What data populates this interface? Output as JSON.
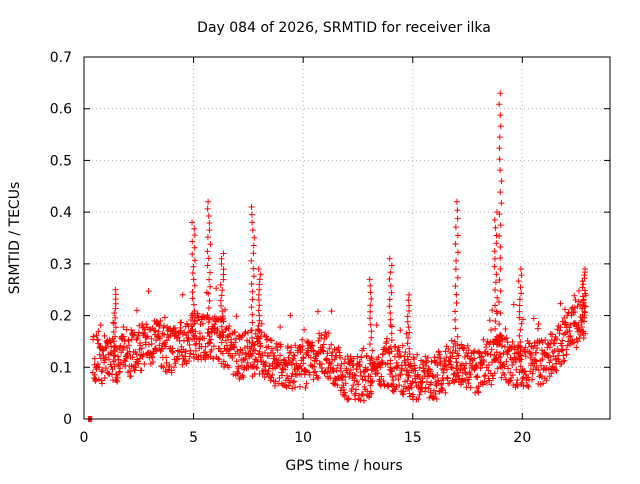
{
  "chart_data": {
    "type": "scatter",
    "title": "Day 084 of 2026, SRMTID for receiver ilka",
    "xlabel": "GPS time / hours",
    "ylabel": "SRMTID / TECUs",
    "xlim": [
      0,
      24
    ],
    "ylim": [
      0,
      0.7
    ],
    "x_ticks": [
      0,
      5,
      10,
      15,
      20
    ],
    "x_tick_labels": [
      "0",
      "5",
      "10",
      "15",
      "20"
    ],
    "y_ticks": [
      0,
      0.1,
      0.2,
      0.3,
      0.4,
      0.5,
      0.6,
      0.7
    ],
    "y_tick_labels": [
      "0",
      "0.1",
      "0.2",
      "0.3",
      "0.4",
      "0.5",
      "0.6",
      "0.7"
    ],
    "grid": true,
    "marker": "+",
    "series_color": "#ff0000",
    "zero_points_x": [
      0.2,
      0.25,
      0.3,
      0.35
    ],
    "peaks": [
      {
        "x": 1.4,
        "y": 0.25
      },
      {
        "x": 5.0,
        "y": 0.38
      },
      {
        "x": 5.7,
        "y": 0.42
      },
      {
        "x": 6.3,
        "y": 0.32
      },
      {
        "x": 7.7,
        "y": 0.41
      },
      {
        "x": 8.0,
        "y": 0.29
      },
      {
        "x": 13.1,
        "y": 0.27
      },
      {
        "x": 14.0,
        "y": 0.31
      },
      {
        "x": 14.8,
        "y": 0.24
      },
      {
        "x": 17.0,
        "y": 0.42
      },
      {
        "x": 18.8,
        "y": 0.4
      },
      {
        "x": 19.0,
        "y": 0.63
      },
      {
        "x": 19.9,
        "y": 0.29
      },
      {
        "x": 22.8,
        "y": 0.29
      }
    ]
  }
}
